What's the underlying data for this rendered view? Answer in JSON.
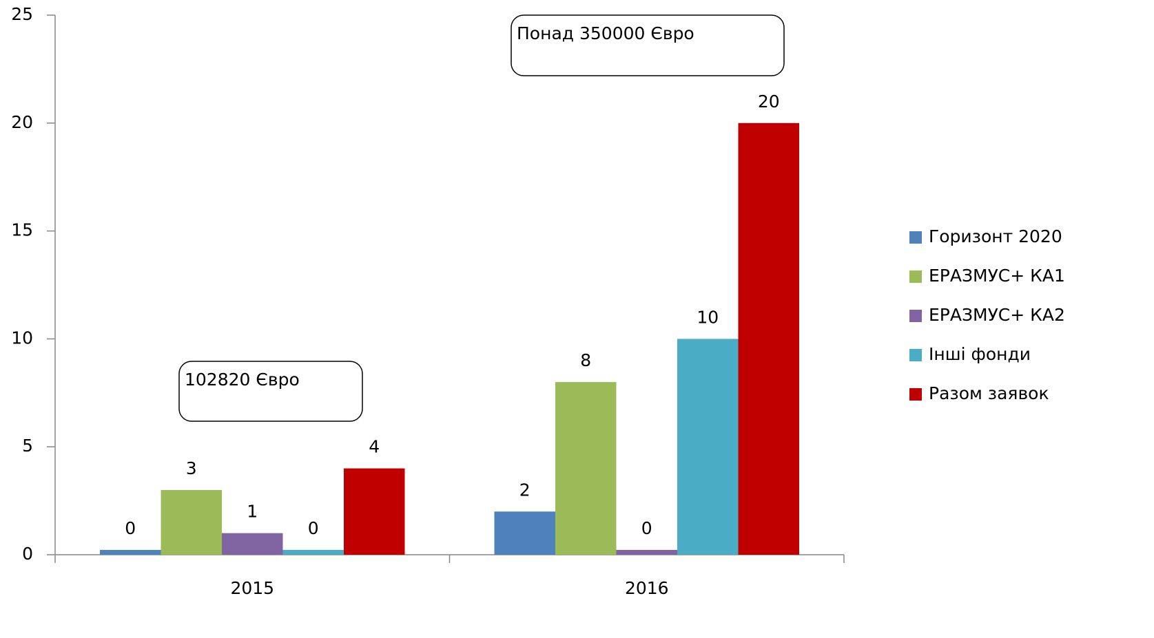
{
  "chart_data": {
    "type": "bar",
    "categories": [
      "2015",
      "2016"
    ],
    "series": [
      {
        "name": "Горизонт 2020",
        "color": "#4f81bd",
        "values": [
          0,
          2
        ]
      },
      {
        "name": "ЕРАЗМУС+ КА1",
        "color": "#9bbb59",
        "values": [
          3,
          8
        ]
      },
      {
        "name": "ЕРАЗМУС+ КА2",
        "color": "#8064a2",
        "values": [
          1,
          0
        ]
      },
      {
        "name": "Інші фонди",
        "color": "#4bacc6",
        "values": [
          0,
          10
        ]
      },
      {
        "name": "Разом заявок",
        "color": "#c00000",
        "values": [
          4,
          20
        ]
      }
    ],
    "annotations": [
      "102820 Євро",
      "Понад 350000 Євро"
    ],
    "ylim": [
      0,
      25
    ],
    "yticks": [
      0,
      5,
      10,
      15,
      20,
      25
    ],
    "legend": "right",
    "grid": false
  }
}
